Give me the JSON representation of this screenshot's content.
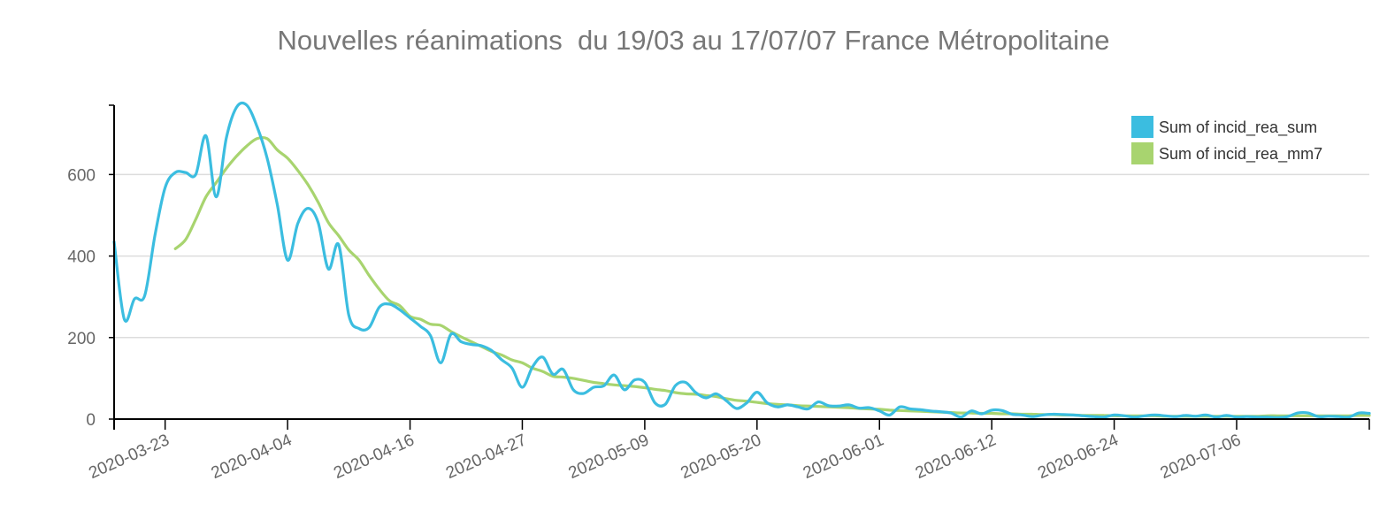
{
  "title": "Nouvelles réanimations  du 19/03 au 17/07/07 France Métropolitaine",
  "colors": {
    "series1": "#3bbde0",
    "series2": "#a8d46f",
    "grid": "#dddddd",
    "axis": "#000000",
    "text": "#666666"
  },
  "chart_data": {
    "type": "line",
    "title": "Nouvelles réanimations  du 19/03 au 17/07/07 France Métropolitaine",
    "xlabel": "",
    "ylabel": "",
    "x_type": "date",
    "xlim": [
      "2020-03-18",
      "2020-07-19"
    ],
    "ylim": [
      0,
      770
    ],
    "yticks": [
      0,
      200,
      400,
      600
    ],
    "xticks": [
      "2020-03-23",
      "2020-04-04",
      "2020-04-16",
      "2020-04-27",
      "2020-05-09",
      "2020-05-20",
      "2020-06-01",
      "2020-06-12",
      "2020-06-24",
      "2020-07-06"
    ],
    "grid": true,
    "legend_position": "top-right",
    "series": [
      {
        "name": "Sum of incid_rea_sum",
        "color": "#3bbde0",
        "points": [
          [
            "2020-03-18",
            435
          ],
          [
            "2020-03-19",
            245
          ],
          [
            "2020-03-20",
            295
          ],
          [
            "2020-03-21",
            303
          ],
          [
            "2020-03-22",
            450
          ],
          [
            "2020-03-23",
            568
          ],
          [
            "2020-03-24",
            605
          ],
          [
            "2020-03-25",
            605
          ],
          [
            "2020-03-26",
            600
          ],
          [
            "2020-03-27",
            695
          ],
          [
            "2020-03-28",
            545
          ],
          [
            "2020-03-29",
            690
          ],
          [
            "2020-03-30",
            765
          ],
          [
            "2020-03-31",
            770
          ],
          [
            "2020-04-01",
            718
          ],
          [
            "2020-04-02",
            640
          ],
          [
            "2020-04-03",
            525
          ],
          [
            "2020-04-04",
            390
          ],
          [
            "2020-04-05",
            480
          ],
          [
            "2020-04-06",
            517
          ],
          [
            "2020-04-07",
            482
          ],
          [
            "2020-04-08",
            368
          ],
          [
            "2020-04-09",
            428
          ],
          [
            "2020-04-10",
            255
          ],
          [
            "2020-04-11",
            222
          ],
          [
            "2020-04-12",
            225
          ],
          [
            "2020-04-13",
            275
          ],
          [
            "2020-04-14",
            282
          ],
          [
            "2020-04-15",
            268
          ],
          [
            "2020-04-16",
            248
          ],
          [
            "2020-04-17",
            228
          ],
          [
            "2020-04-18",
            205
          ],
          [
            "2020-04-19",
            138
          ],
          [
            "2020-04-20",
            208
          ],
          [
            "2020-04-21",
            190
          ],
          [
            "2020-04-22",
            183
          ],
          [
            "2020-04-23",
            180
          ],
          [
            "2020-04-24",
            168
          ],
          [
            "2020-04-25",
            145
          ],
          [
            "2020-04-26",
            125
          ],
          [
            "2020-04-27",
            78
          ],
          [
            "2020-04-28",
            128
          ],
          [
            "2020-04-29",
            152
          ],
          [
            "2020-04-30",
            110
          ],
          [
            "2020-05-01",
            122
          ],
          [
            "2020-05-02",
            72
          ],
          [
            "2020-05-03",
            63
          ],
          [
            "2020-05-04",
            78
          ],
          [
            "2020-05-05",
            82
          ],
          [
            "2020-05-06",
            108
          ],
          [
            "2020-05-07",
            72
          ],
          [
            "2020-05-08",
            96
          ],
          [
            "2020-05-09",
            90
          ],
          [
            "2020-05-10",
            40
          ],
          [
            "2020-05-11",
            36
          ],
          [
            "2020-05-12",
            82
          ],
          [
            "2020-05-13",
            90
          ],
          [
            "2020-05-14",
            65
          ],
          [
            "2020-05-15",
            52
          ],
          [
            "2020-05-16",
            62
          ],
          [
            "2020-05-17",
            45
          ],
          [
            "2020-05-18",
            26
          ],
          [
            "2020-05-19",
            40
          ],
          [
            "2020-05-20",
            66
          ],
          [
            "2020-05-21",
            40
          ],
          [
            "2020-05-22",
            30
          ],
          [
            "2020-05-23",
            35
          ],
          [
            "2020-05-24",
            30
          ],
          [
            "2020-05-25",
            25
          ],
          [
            "2020-05-26",
            42
          ],
          [
            "2020-05-27",
            33
          ],
          [
            "2020-05-28",
            32
          ],
          [
            "2020-05-29",
            35
          ],
          [
            "2020-05-30",
            27
          ],
          [
            "2020-05-31",
            28
          ],
          [
            "2020-06-01",
            20
          ],
          [
            "2020-06-02",
            10
          ],
          [
            "2020-06-03",
            30
          ],
          [
            "2020-06-04",
            25
          ],
          [
            "2020-06-05",
            23
          ],
          [
            "2020-06-06",
            20
          ],
          [
            "2020-06-07",
            18
          ],
          [
            "2020-06-08",
            15
          ],
          [
            "2020-06-09",
            5
          ],
          [
            "2020-06-10",
            20
          ],
          [
            "2020-06-11",
            13
          ],
          [
            "2020-06-12",
            22
          ],
          [
            "2020-06-13",
            21
          ],
          [
            "2020-06-14",
            12
          ],
          [
            "2020-06-15",
            10
          ],
          [
            "2020-06-16",
            6
          ],
          [
            "2020-06-17",
            10
          ],
          [
            "2020-06-18",
            12
          ],
          [
            "2020-06-19",
            11
          ],
          [
            "2020-06-20",
            10
          ],
          [
            "2020-06-21",
            8
          ],
          [
            "2020-06-22",
            6
          ],
          [
            "2020-06-23",
            5
          ],
          [
            "2020-06-24",
            10
          ],
          [
            "2020-06-25",
            8
          ],
          [
            "2020-06-26",
            5
          ],
          [
            "2020-06-27",
            8
          ],
          [
            "2020-06-28",
            10
          ],
          [
            "2020-06-29",
            8
          ],
          [
            "2020-06-30",
            6
          ],
          [
            "2020-07-01",
            9
          ],
          [
            "2020-07-02",
            7
          ],
          [
            "2020-07-03",
            10
          ],
          [
            "2020-07-04",
            5
          ],
          [
            "2020-07-05",
            9
          ],
          [
            "2020-07-06",
            5
          ],
          [
            "2020-07-07",
            6
          ],
          [
            "2020-07-08",
            5
          ],
          [
            "2020-07-09",
            5
          ],
          [
            "2020-07-10",
            4
          ],
          [
            "2020-07-11",
            6
          ],
          [
            "2020-07-12",
            15
          ],
          [
            "2020-07-13",
            15
          ],
          [
            "2020-07-14",
            6
          ],
          [
            "2020-07-15",
            7
          ],
          [
            "2020-07-16",
            6
          ],
          [
            "2020-07-17",
            5
          ],
          [
            "2020-07-18",
            15
          ],
          [
            "2020-07-19",
            14
          ]
        ]
      },
      {
        "name": "Sum of incid_rea_mm7",
        "color": "#a8d46f",
        "points": [
          [
            "2020-03-24",
            418
          ],
          [
            "2020-03-25",
            440
          ],
          [
            "2020-03-26",
            490
          ],
          [
            "2020-03-27",
            545
          ],
          [
            "2020-03-28",
            580
          ],
          [
            "2020-03-29",
            615
          ],
          [
            "2020-03-30",
            645
          ],
          [
            "2020-03-31",
            670
          ],
          [
            "2020-04-01",
            688
          ],
          [
            "2020-04-02",
            688
          ],
          [
            "2020-04-03",
            660
          ],
          [
            "2020-04-04",
            640
          ],
          [
            "2020-04-05",
            610
          ],
          [
            "2020-04-06",
            575
          ],
          [
            "2020-04-07",
            532
          ],
          [
            "2020-04-08",
            482
          ],
          [
            "2020-04-09",
            450
          ],
          [
            "2020-04-10",
            415
          ],
          [
            "2020-04-11",
            390
          ],
          [
            "2020-04-12",
            352
          ],
          [
            "2020-04-13",
            318
          ],
          [
            "2020-04-14",
            290
          ],
          [
            "2020-04-15",
            278
          ],
          [
            "2020-04-16",
            252
          ],
          [
            "2020-04-17",
            245
          ],
          [
            "2020-04-18",
            233
          ],
          [
            "2020-04-19",
            230
          ],
          [
            "2020-04-20",
            215
          ],
          [
            "2020-04-21",
            202
          ],
          [
            "2020-04-22",
            190
          ],
          [
            "2020-04-23",
            178
          ],
          [
            "2020-04-24",
            166
          ],
          [
            "2020-04-25",
            157
          ],
          [
            "2020-04-26",
            145
          ],
          [
            "2020-04-27",
            138
          ],
          [
            "2020-04-28",
            125
          ],
          [
            "2020-04-29",
            117
          ],
          [
            "2020-04-30",
            105
          ],
          [
            "2020-05-01",
            103
          ],
          [
            "2020-05-02",
            100
          ],
          [
            "2020-05-03",
            95
          ],
          [
            "2020-05-04",
            90
          ],
          [
            "2020-05-05",
            87
          ],
          [
            "2020-05-06",
            84
          ],
          [
            "2020-05-07",
            82
          ],
          [
            "2020-05-08",
            80
          ],
          [
            "2020-05-09",
            77
          ],
          [
            "2020-05-10",
            73
          ],
          [
            "2020-05-11",
            70
          ],
          [
            "2020-05-12",
            65
          ],
          [
            "2020-05-13",
            62
          ],
          [
            "2020-05-14",
            61
          ],
          [
            "2020-05-15",
            58
          ],
          [
            "2020-05-16",
            55
          ],
          [
            "2020-05-17",
            50
          ],
          [
            "2020-05-18",
            46
          ],
          [
            "2020-05-19",
            44
          ],
          [
            "2020-05-20",
            41
          ],
          [
            "2020-05-21",
            38
          ],
          [
            "2020-05-22",
            36
          ],
          [
            "2020-05-23",
            35
          ],
          [
            "2020-05-24",
            33
          ],
          [
            "2020-05-25",
            32
          ],
          [
            "2020-05-26",
            31
          ],
          [
            "2020-05-27",
            30
          ],
          [
            "2020-05-28",
            29
          ],
          [
            "2020-05-29",
            28
          ],
          [
            "2020-05-30",
            26
          ],
          [
            "2020-05-31",
            25
          ],
          [
            "2020-06-01",
            24
          ],
          [
            "2020-06-02",
            22
          ],
          [
            "2020-06-03",
            21
          ],
          [
            "2020-06-04",
            20
          ],
          [
            "2020-06-05",
            19
          ],
          [
            "2020-06-06",
            18
          ],
          [
            "2020-06-07",
            17
          ],
          [
            "2020-06-08",
            16
          ],
          [
            "2020-06-09",
            15
          ],
          [
            "2020-06-10",
            15
          ],
          [
            "2020-06-11",
            14
          ],
          [
            "2020-06-12",
            14
          ],
          [
            "2020-06-13",
            13
          ],
          [
            "2020-06-14",
            13
          ],
          [
            "2020-06-15",
            12
          ],
          [
            "2020-06-16",
            12
          ],
          [
            "2020-06-17",
            11
          ],
          [
            "2020-06-18",
            11
          ],
          [
            "2020-06-19",
            10
          ],
          [
            "2020-06-20",
            10
          ],
          [
            "2020-06-21",
            9
          ],
          [
            "2020-06-22",
            9
          ],
          [
            "2020-06-23",
            9
          ],
          [
            "2020-06-24",
            8
          ],
          [
            "2020-06-25",
            8
          ],
          [
            "2020-06-26",
            8
          ],
          [
            "2020-06-27",
            8
          ],
          [
            "2020-06-28",
            8
          ],
          [
            "2020-06-29",
            7
          ],
          [
            "2020-06-30",
            7
          ],
          [
            "2020-07-01",
            7
          ],
          [
            "2020-07-02",
            7
          ],
          [
            "2020-07-03",
            7
          ],
          [
            "2020-07-04",
            7
          ],
          [
            "2020-07-05",
            7
          ],
          [
            "2020-07-06",
            7
          ],
          [
            "2020-07-07",
            7
          ],
          [
            "2020-07-08",
            7
          ],
          [
            "2020-07-09",
            8
          ],
          [
            "2020-07-10",
            8
          ],
          [
            "2020-07-11",
            8
          ],
          [
            "2020-07-12",
            8
          ],
          [
            "2020-07-13",
            8
          ],
          [
            "2020-07-14",
            8
          ],
          [
            "2020-07-15",
            8
          ],
          [
            "2020-07-16",
            8
          ],
          [
            "2020-07-17",
            8
          ],
          [
            "2020-07-18",
            9
          ],
          [
            "2020-07-19",
            9
          ]
        ]
      }
    ]
  }
}
